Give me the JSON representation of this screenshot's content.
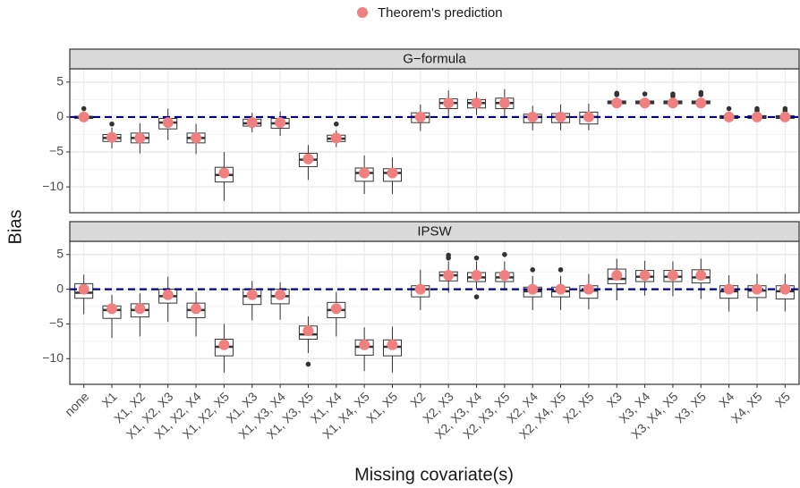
{
  "chart_data": {
    "type": "box",
    "x_label": "Missing covariate(s)",
    "y_label": "Bias",
    "categories": [
      "none",
      "X1",
      "X1, X2",
      "X1, X2, X3",
      "X1, X2, X4",
      "X1, X2, X5",
      "X1, X3",
      "X1, X3, X4",
      "X1, X3, X5",
      "X1, X4",
      "X1, X4, X5",
      "X1, X5",
      "X2",
      "X2, X3",
      "X2, X3, X4",
      "X2, X3, X5",
      "X2, X4",
      "X2, X4, X5",
      "X2, X5",
      "X3",
      "X3, X4",
      "X3, X4, X5",
      "X3, X5",
      "X4",
      "X4, X5",
      "X5"
    ],
    "ylim": [
      -13.7,
      6.9
    ],
    "yticks": [
      {
        "value": -10,
        "label": "−10"
      },
      {
        "value": -5,
        "label": "−5"
      },
      0,
      5
    ],
    "grid": true,
    "hline": 0,
    "hline_color": "#00008b",
    "box_color": "#333333",
    "prediction_name": "Theorem's prediction",
    "prediction_color": "#f08080",
    "panels": [
      {
        "title": "G−formula",
        "low": [
          -0.5,
          -4.5,
          -5.2,
          -3.3,
          -5.3,
          -12,
          -2.2,
          -2.7,
          -9,
          -4.3,
          -11,
          -11,
          -2,
          0,
          0.3,
          0.1,
          -1.9,
          -1.9,
          -1.9,
          1.6,
          1.6,
          1.6,
          1.6,
          -0.5,
          -0.5,
          -0.5
        ],
        "q1": [
          -0.2,
          -3.5,
          -3.7,
          -1.7,
          -3.7,
          -9.3,
          -1.3,
          -1.6,
          -7.1,
          -3.5,
          -9.2,
          -9.2,
          -0.8,
          1.2,
          1.3,
          1.2,
          -0.8,
          -0.8,
          -1,
          1.9,
          1.9,
          1.9,
          1.9,
          -0.2,
          -0.2,
          -0.2
        ],
        "median": [
          0,
          -3,
          -3,
          -0.8,
          -3,
          -8.3,
          -0.9,
          -0.9,
          -6.1,
          -3.1,
          -8,
          -8,
          0,
          2,
          2,
          2,
          0,
          0,
          0,
          2.1,
          2.1,
          2.1,
          2.1,
          0,
          0,
          0
        ],
        "q3": [
          0.1,
          -2.5,
          -2.3,
          -0.2,
          -2.3,
          -7.2,
          -0.3,
          -0.2,
          -5.2,
          -2.6,
          -7.3,
          -7.4,
          0.6,
          2.6,
          2.5,
          2.7,
          0.4,
          0.5,
          0.7,
          2.3,
          2.3,
          2.3,
          2.3,
          0.2,
          0.2,
          0.2
        ],
        "high": [
          0.5,
          -1.5,
          -0.9,
          1.2,
          -1,
          -5,
          0.6,
          0.8,
          -4,
          -1.9,
          -5.5,
          -5.8,
          1.8,
          3.8,
          3.6,
          4,
          1.6,
          1.8,
          1.9,
          2.6,
          2.6,
          2.6,
          2.6,
          0.5,
          0.5,
          0.5
        ],
        "outliers": [
          [
            1.2
          ],
          [
            -1
          ],
          [],
          [],
          [],
          [],
          [],
          [],
          [],
          [
            -1
          ],
          [],
          [],
          [],
          [],
          [],
          [],
          [],
          [],
          [],
          [
            3.2,
            3.4
          ],
          [
            3.3
          ],
          [
            3,
            3.3
          ],
          [
            3.2,
            3.5
          ],
          [
            1.2
          ],
          [
            0.9,
            1.2
          ],
          [
            0.9,
            1.2
          ]
        ],
        "prediction": [
          0,
          -2.9,
          -3,
          -0.8,
          -3,
          -8,
          -0.8,
          -0.8,
          -6,
          -3,
          -8,
          -8,
          0,
          2,
          2,
          2,
          0,
          0,
          0,
          2,
          2,
          2,
          2,
          0,
          0,
          0
        ]
      },
      {
        "title": "IPSW",
        "low": [
          -3.6,
          -7,
          -6.8,
          -4.7,
          -6.8,
          -12,
          -4.5,
          -4.4,
          -9.2,
          -6.8,
          -11.8,
          -12,
          -3,
          -0.5,
          0,
          -0.2,
          -3,
          -3,
          -2.9,
          -1.6,
          -0.9,
          -1,
          -1.4,
          -3.2,
          -3.2,
          -3.2
        ],
        "q1": [
          -1.3,
          -4.2,
          -4,
          -2,
          -4.1,
          -9.6,
          -2.2,
          -2.1,
          -7.2,
          -4.1,
          -9.5,
          -9.6,
          -1.1,
          1.2,
          1.1,
          1.1,
          -1.1,
          -1.1,
          -1.3,
          0.8,
          1.1,
          1.1,
          0.9,
          -1.3,
          -1.2,
          -1.4
        ],
        "median": [
          -0.5,
          -3,
          -3,
          -1,
          -3,
          -8.3,
          -1,
          -1,
          -6.5,
          -3,
          -8.3,
          -8.3,
          0,
          2,
          1.7,
          1.7,
          -0.3,
          -0.3,
          -0.2,
          1.5,
          1.8,
          1.8,
          1.7,
          -0.3,
          -0.2,
          -0.3
        ],
        "q3": [
          0.8,
          -2.4,
          -2.1,
          0,
          -2,
          -7.2,
          0,
          0,
          -5.3,
          -1.9,
          -7.3,
          -7.3,
          0.5,
          2.5,
          2.4,
          2.4,
          0.3,
          0.3,
          0.5,
          2.9,
          2.7,
          2.7,
          2.8,
          0.5,
          0.5,
          0.5
        ],
        "high": [
          2.1,
          -0.8,
          -0.6,
          1.8,
          -0.4,
          -5,
          1.2,
          1,
          -3.9,
          -0.4,
          -5.5,
          -5.4,
          2.8,
          4,
          4,
          4,
          1.9,
          1.9,
          2.2,
          4.4,
          4.1,
          4,
          4.4,
          2,
          2.2,
          2.2
        ],
        "outliers": [
          [],
          [],
          [],
          [],
          [],
          [],
          [],
          [],
          [
            -10.8
          ],
          [],
          [],
          [],
          [],
          [
            4.5,
            4.9
          ],
          [
            4.5,
            -1.1
          ],
          [
            5
          ],
          [
            2.8
          ],
          [
            2.8
          ],
          [],
          [],
          [],
          [],
          [],
          [],
          [],
          []
        ],
        "prediction": [
          0,
          -2.8,
          -2.8,
          -0.8,
          -2.8,
          -8,
          -0.8,
          -0.8,
          -6,
          -2.8,
          -8,
          -8,
          0,
          2,
          2,
          2,
          0,
          0,
          0,
          2,
          2,
          2,
          2,
          0,
          0,
          0
        ]
      }
    ]
  }
}
